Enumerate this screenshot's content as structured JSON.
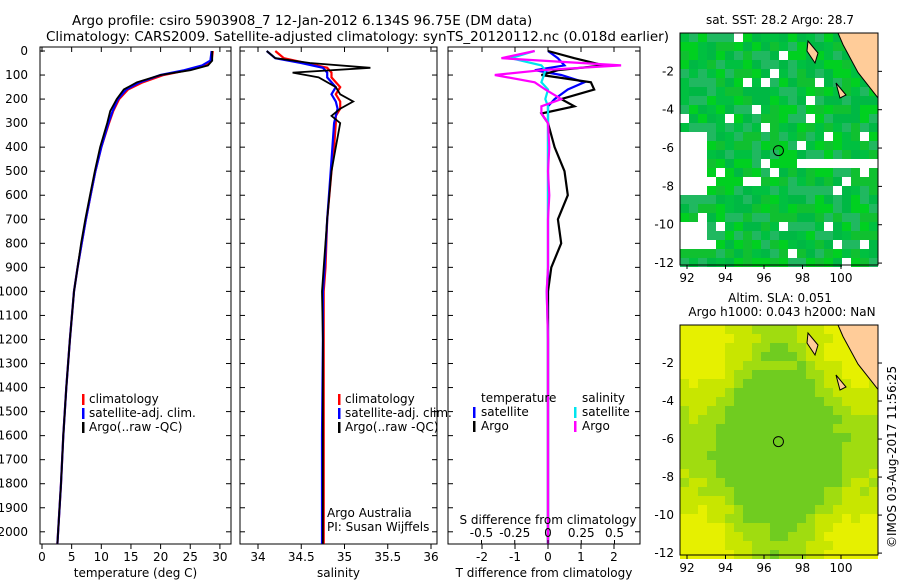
{
  "title_line1": "Argo profile: csiro 5903908_7 12-Jan-2012 6.134S 96.75E (DM data)",
  "title_line2": "Climatology: CARS2009. Satellite-adjusted climatology: synTS_20120112.nc (0.018d earlier)",
  "side_stamp": "©IMOS 03-Aug-2017 11:56:25",
  "colors": {
    "climatology": "#ff0000",
    "satellite": "#0000ff",
    "argo": "#000000",
    "sal_satellite": "#00e5ee",
    "sal_argo": "#ff00ff",
    "land": "#ffcc99"
  },
  "chart_data": [
    {
      "type": "line",
      "id": "temperature",
      "xlabel": "temperature (deg C)",
      "ylabel": "",
      "xlim": [
        -0.3,
        31
      ],
      "ylim": [
        2050,
        0
      ],
      "xticks": [
        "0",
        "5",
        "10",
        "15",
        "20",
        "25",
        "30"
      ],
      "yticks": [
        "0",
        "100",
        "200",
        "300",
        "400",
        "500",
        "600",
        "700",
        "800",
        "900",
        "1000",
        "1100",
        "1200",
        "1300",
        "1400",
        "1500",
        "1600",
        "1700",
        "1800",
        "1900",
        "2000"
      ],
      "legend": [
        "climatology",
        "satellite-adj. clim.",
        "Argo(..raw -QC)"
      ],
      "depth": [
        0,
        40,
        60,
        80,
        100,
        130,
        160,
        200,
        250,
        300,
        400,
        500,
        600,
        700,
        800,
        900,
        1000,
        1200,
        1400,
        1600,
        1800,
        2050
      ],
      "series": [
        {
          "name": "climatology",
          "values": [
            28.8,
            28.6,
            27.5,
            24.5,
            20.5,
            17,
            14.5,
            13,
            12,
            11.3,
            10,
            9,
            8.2,
            7.4,
            6.7,
            6,
            5.4,
            4.7,
            4.1,
            3.6,
            3.2,
            2.6
          ]
        },
        {
          "name": "satellite-adj. clim.",
          "values": [
            28.6,
            28.4,
            27,
            24,
            20,
            16.5,
            14.2,
            12.8,
            11.9,
            11.2,
            10,
            9,
            8.2,
            7.4,
            6.7,
            6,
            5.4,
            4.7,
            4.1,
            3.6,
            3.2,
            2.6
          ]
        },
        {
          "name": "Argo(..raw -QC)",
          "values": [
            28.7,
            28.7,
            28,
            25,
            20,
            16,
            13.8,
            12.6,
            11.5,
            11,
            9.8,
            8.9,
            8.1,
            7.3,
            6.6,
            6,
            5.4,
            4.7,
            4.1,
            3.6,
            3.2,
            2.6
          ]
        }
      ]
    },
    {
      "type": "line",
      "id": "salinity",
      "xlabel": "salinity",
      "xlim": [
        33.8,
        36.1
      ],
      "ylim": [
        2050,
        0
      ],
      "xticks": [
        "34",
        "34.5",
        "35",
        "35.5",
        "36"
      ],
      "legend": [
        "climatology",
        "satellite-adj. clim.",
        "Argo(..raw -QC)"
      ],
      "annotation": [
        "Argo Australia",
        "PI: Susan Wijffels"
      ],
      "depth": [
        0,
        30,
        50,
        70,
        90,
        110,
        150,
        180,
        210,
        240,
        270,
        300,
        400,
        500,
        700,
        900,
        1000,
        1200,
        1600,
        2050
      ],
      "series": [
        {
          "name": "climatology",
          "values": [
            34.2,
            34.3,
            34.55,
            34.8,
            34.85,
            34.85,
            34.95,
            34.9,
            34.95,
            34.95,
            34.9,
            34.9,
            34.88,
            34.85,
            34.8,
            34.78,
            34.76,
            34.76,
            34.76,
            34.76
          ]
        },
        {
          "name": "satellite-adj. clim.",
          "values": [
            34.1,
            34.2,
            34.5,
            34.75,
            34.8,
            34.8,
            34.9,
            34.85,
            34.9,
            34.92,
            34.9,
            34.88,
            34.86,
            34.84,
            34.8,
            34.77,
            34.75,
            34.75,
            34.74,
            34.74
          ]
        },
        {
          "name": "Argo(..raw -QC)",
          "values": [
            34.1,
            34.2,
            34.6,
            35.3,
            34.4,
            34.7,
            34.9,
            34.95,
            35.1,
            34.95,
            34.85,
            34.95,
            34.9,
            34.85,
            34.8,
            34.76,
            34.74,
            34.75,
            34.75,
            34.75
          ]
        }
      ]
    },
    {
      "type": "line",
      "id": "difference",
      "xlabel": "T difference from climatology",
      "xlabel2": "S difference from climatology",
      "xlim": [
        -3,
        3
      ],
      "ylim": [
        2050,
        0
      ],
      "xticks": [
        "-2",
        "-1",
        "0",
        "1",
        "2"
      ],
      "xticks2": [
        "-0.5",
        "-0.25",
        "0",
        "0.25",
        "0.5"
      ],
      "legend_headers": [
        "temperature",
        "salinity"
      ],
      "legend": [
        "satellite",
        "Argo",
        "satellite",
        "Argo"
      ],
      "depth": [
        0,
        30,
        60,
        80,
        100,
        130,
        160,
        200,
        230,
        260,
        300,
        400,
        500,
        600,
        700,
        800,
        900,
        1000,
        1200,
        1500,
        2050
      ],
      "series": [
        {
          "name": "T satellite",
          "values": [
            0,
            0.3,
            0.5,
            -0.4,
            0.4,
            1.1,
            0.6,
            0.2,
            0,
            0,
            0,
            0,
            0,
            0,
            0,
            0,
            0,
            0,
            0,
            0,
            0
          ]
        },
        {
          "name": "T Argo",
          "values": [
            0,
            0.8,
            1.7,
            0.3,
            -0.2,
            1.3,
            1.4,
            0.4,
            0.8,
            -0.2,
            0,
            0.2,
            0.5,
            0.6,
            0.3,
            0.4,
            0.1,
            0,
            0,
            0,
            0
          ]
        },
        {
          "name": "S satellite",
          "values": [
            -0.1,
            -0.28,
            -0.05,
            -0.02,
            -0.03,
            -0.05,
            0,
            -0.02,
            0,
            0,
            0,
            0,
            0,
            0,
            0,
            0,
            0,
            -0.01,
            0,
            0,
            0
          ]
        },
        {
          "name": "S Argo",
          "values": [
            -0.1,
            -0.35,
            0.55,
            -0.05,
            -0.4,
            -0.1,
            -0.02,
            0.1,
            -0.05,
            -0.05,
            0,
            0.01,
            0,
            0.01,
            0,
            0,
            0,
            -0.01,
            0,
            0,
            0
          ]
        }
      ]
    },
    {
      "type": "heatmap",
      "id": "sst-map",
      "title": "sat. SST: 28.2 Argo: 28.7",
      "xlim": [
        91.5,
        102
      ],
      "ylim": [
        -12.1,
        0
      ],
      "xticks": [
        "92",
        "94",
        "96",
        "98",
        "100"
      ],
      "yticks": [
        "-2",
        "-4",
        "-6",
        "-8",
        "-10",
        "-12"
      ],
      "marker": {
        "lon": 96.75,
        "lat": -6.134
      }
    },
    {
      "type": "heatmap",
      "id": "sla-map",
      "title": "Altim. SLA: 0.051",
      "subtitle": "Argo h1000: 0.043 h2000: NaN",
      "xlim": [
        91.5,
        102
      ],
      "ylim": [
        -12.1,
        0
      ],
      "xticks": [
        "92",
        "94",
        "96",
        "98",
        "100"
      ],
      "yticks": [
        "-2",
        "-4",
        "-6",
        "-8",
        "-10",
        "-12"
      ],
      "marker": {
        "lon": 96.75,
        "lat": -6.134
      }
    }
  ]
}
